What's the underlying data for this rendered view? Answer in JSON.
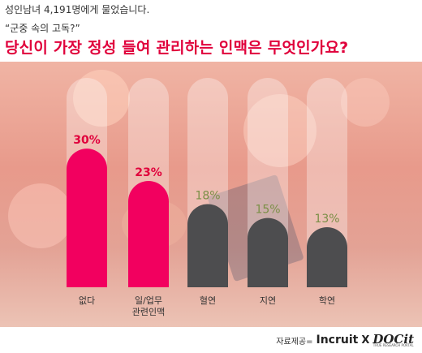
{
  "header": {
    "survey_note": "성인남녀 4,191명에게 물었습니다.",
    "subtitle": "“군중 속의 고독?”",
    "title": "당신이 가장 정성 들여 관리하는 인맥은 무엇인가요?"
  },
  "source": {
    "label": "자료제공=",
    "brand_1": "Incruit",
    "separator": "X",
    "brand_2": "DOCit",
    "brand_2_tagline": "TRUE RESEARCH PORTAL"
  },
  "colors": {
    "title": "#e0003b",
    "highlight_bar": "#f2005f",
    "highlight_label": "#e0003b",
    "dark_bar": "#4d4d4f",
    "dim_label": "#7b8f47",
    "track": "#ffffff"
  },
  "chart_data": {
    "type": "bar",
    "categories": [
      "없다",
      "일/업무\n관련인맥",
      "혈연",
      "지연",
      "학연"
    ],
    "values": [
      30,
      23,
      18,
      15,
      13
    ],
    "value_labels": [
      "30%",
      "23%",
      "18%",
      "15%",
      "13%"
    ],
    "highlighted": [
      true,
      true,
      false,
      false,
      false
    ],
    "title": "당신이 가장 정성 들여 관리하는 인맥은 무엇인가요?",
    "xlabel": "",
    "ylabel": "",
    "ylim": [
      0,
      100
    ],
    "grid": false,
    "legend": "none"
  }
}
